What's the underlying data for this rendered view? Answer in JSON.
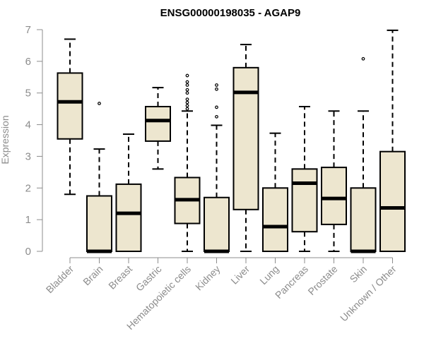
{
  "chart_data": {
    "type": "boxplot",
    "title": "ENSG00000198035 - AGAP9",
    "xlabel": "",
    "ylabel": "Expression",
    "ylim": [
      0,
      7
    ],
    "yticks": [
      "0",
      "1",
      "2",
      "3",
      "4",
      "5",
      "6",
      "7"
    ],
    "grid": false,
    "colors": {
      "box_fill": "#ede6cf",
      "stroke": "#000000",
      "axis": "#8c8c8c"
    },
    "categories": [
      "Bladder",
      "Brain",
      "Breast",
      "Gastric",
      "Hematopoietic cells",
      "Kidney",
      "Liver",
      "Lung",
      "Pancreas",
      "Prostate",
      "Skin",
      "Unknown / Other"
    ],
    "boxes": [
      {
        "name": "Bladder",
        "whisker_low": 1.8,
        "q1": 3.55,
        "median": 4.72,
        "q3": 5.63,
        "whisker_high": 6.7,
        "outliers": []
      },
      {
        "name": "Brain",
        "whisker_low": 0,
        "q1": 0,
        "median": 0,
        "q3": 1.75,
        "whisker_high": 3.23,
        "outliers": [
          4.67
        ]
      },
      {
        "name": "Breast",
        "whisker_low": 0,
        "q1": 0,
        "median": 1.2,
        "q3": 2.12,
        "whisker_high": 3.7,
        "outliers": []
      },
      {
        "name": "Gastric",
        "whisker_low": 2.6,
        "q1": 3.48,
        "median": 4.13,
        "q3": 4.57,
        "whisker_high": 5.17,
        "outliers": []
      },
      {
        "name": "Hematopoietic cells",
        "whisker_low": 0,
        "q1": 0.88,
        "median": 1.63,
        "q3": 2.33,
        "whisker_high": 4.43,
        "outliers": [
          4.5,
          4.6,
          4.7,
          4.8,
          5.0,
          5.1,
          5.25,
          5.35,
          5.55
        ]
      },
      {
        "name": "Kidney",
        "whisker_low": 0,
        "q1": 0,
        "median": 0,
        "q3": 1.7,
        "whisker_high": 3.98,
        "outliers": [
          4.25,
          4.55,
          5.12,
          5.25
        ]
      },
      {
        "name": "Liver",
        "whisker_low": 0,
        "q1": 1.32,
        "median": 5.02,
        "q3": 5.8,
        "whisker_high": 6.53,
        "outliers": []
      },
      {
        "name": "Lung",
        "whisker_low": 0,
        "q1": 0,
        "median": 0.78,
        "q3": 2.0,
        "whisker_high": 3.73,
        "outliers": []
      },
      {
        "name": "Pancreas",
        "whisker_low": 0,
        "q1": 0.62,
        "median": 2.15,
        "q3": 2.6,
        "whisker_high": 4.57,
        "outliers": []
      },
      {
        "name": "Prostate",
        "whisker_low": 0,
        "q1": 0.85,
        "median": 1.67,
        "q3": 2.65,
        "whisker_high": 4.43,
        "outliers": []
      },
      {
        "name": "Skin",
        "whisker_low": 0,
        "q1": 0,
        "median": 0,
        "q3": 2.0,
        "whisker_high": 4.43,
        "outliers": [
          6.08
        ]
      },
      {
        "name": "Unknown / Other",
        "whisker_low": 0,
        "q1": 0,
        "median": 1.37,
        "q3": 3.15,
        "whisker_high": 6.98,
        "outliers": []
      }
    ]
  }
}
